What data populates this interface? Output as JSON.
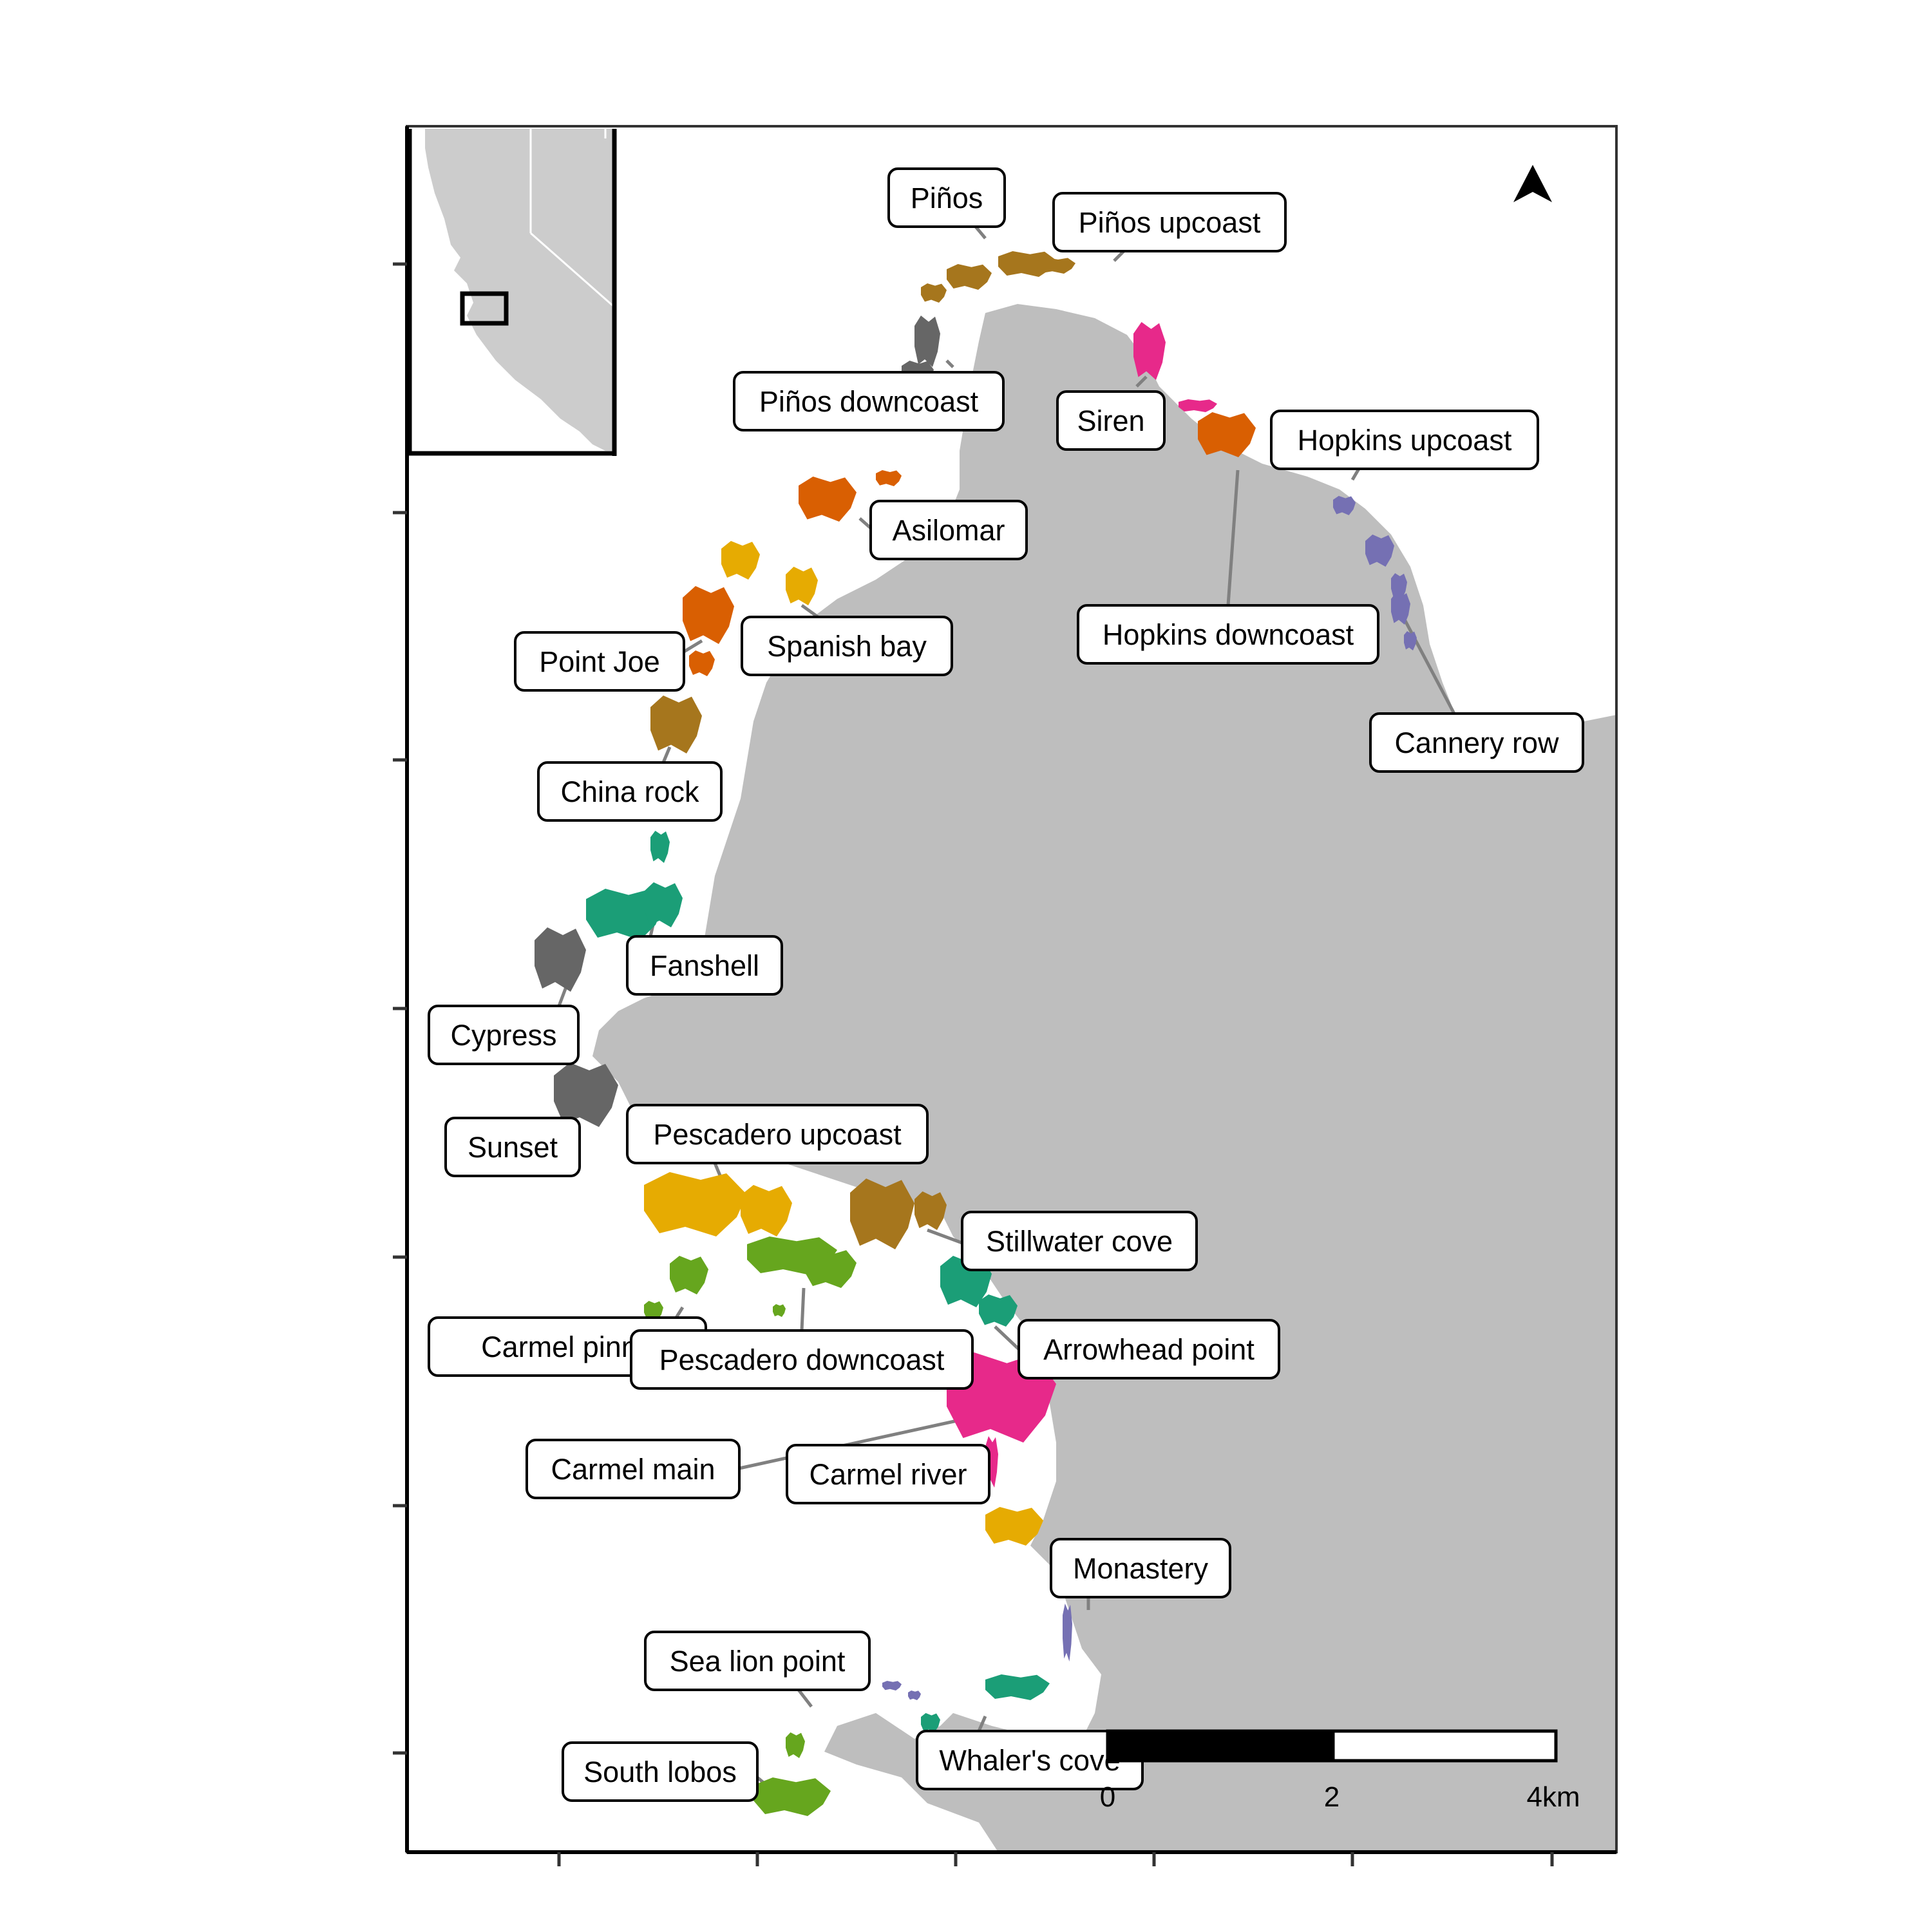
{
  "map": {
    "land_color": "#bebebe",
    "water_color": "#ffffff",
    "frame_color": "#000000",
    "leader_color": "#808080"
  },
  "palette": {
    "teal": "#1b9e77",
    "orange": "#d95f02",
    "purple": "#7570b3",
    "magenta": "#e7298a",
    "green": "#66a61e",
    "yellow": "#e6ab02",
    "brown": "#a6761d",
    "gray": "#666666"
  },
  "sites": [
    {
      "name": "Piños",
      "color": "brown"
    },
    {
      "name": "Piños upcoast",
      "color": "brown"
    },
    {
      "name": "Piños downcoast",
      "color": "gray"
    },
    {
      "name": "Siren",
      "color": "magenta"
    },
    {
      "name": "Hopkins upcoast",
      "color": "purple"
    },
    {
      "name": "Hopkins downcoast",
      "color": "orange"
    },
    {
      "name": "Asilomar",
      "color": "orange"
    },
    {
      "name": "Spanish bay",
      "color": "yellow"
    },
    {
      "name": "Point Joe",
      "color": "orange"
    },
    {
      "name": "China rock",
      "color": "brown"
    },
    {
      "name": "Cannery row",
      "color": "purple"
    },
    {
      "name": "Fanshell",
      "color": "teal"
    },
    {
      "name": "Cypress",
      "color": "gray"
    },
    {
      "name": "Sunset",
      "color": "gray"
    },
    {
      "name": "Pescadero upcoast",
      "color": "yellow"
    },
    {
      "name": "Stillwater cove",
      "color": "brown"
    },
    {
      "name": "Arrowhead point",
      "color": "teal"
    },
    {
      "name": "Carmel pinnacles",
      "display": "Carmel pinna",
      "color": "green"
    },
    {
      "name": "Pescadero downcoast",
      "color": "green"
    },
    {
      "name": "Carmel main",
      "color": "magenta"
    },
    {
      "name": "Carmel river",
      "color": "magenta"
    },
    {
      "name": "Monastery",
      "color": "yellow"
    },
    {
      "name": "Sea lion point",
      "color": "purple"
    },
    {
      "name": "Whaler's cove",
      "display": "Whaler's cove",
      "color": "teal"
    },
    {
      "name": "South lobos",
      "color": "green"
    }
  ],
  "scale_bar": {
    "labels": [
      "0",
      "2",
      "4km"
    ]
  },
  "north_arrow": {
    "icon": "north-arrow-icon"
  }
}
